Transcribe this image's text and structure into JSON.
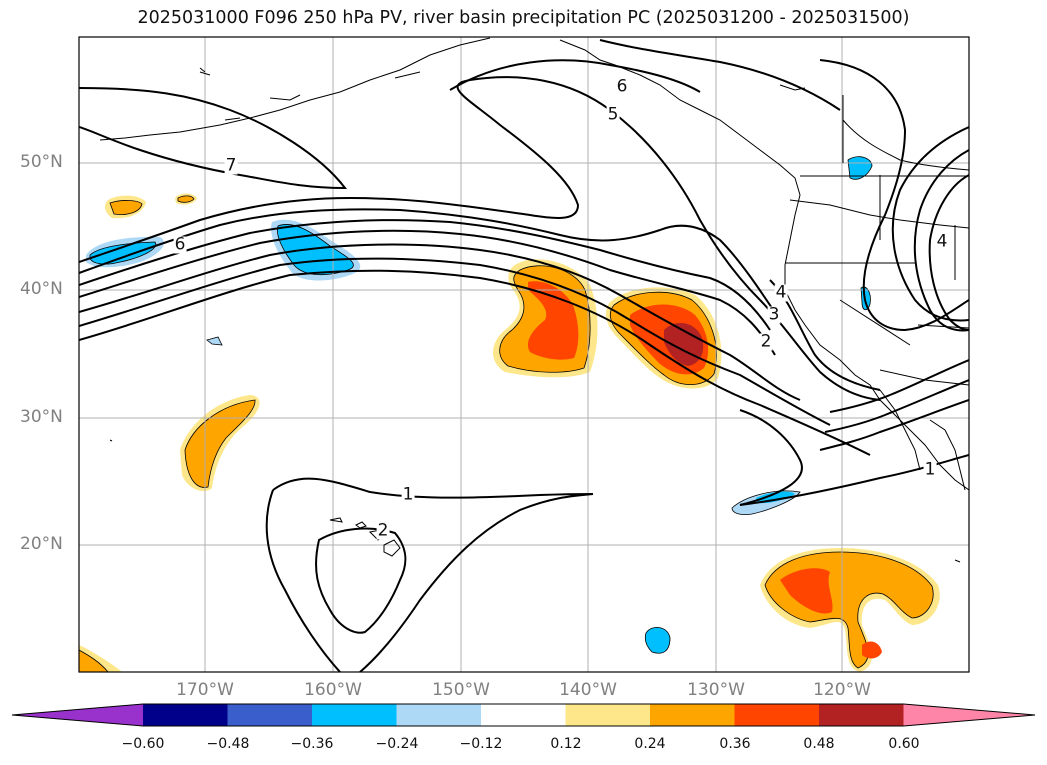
{
  "title": "2025031000 F096 250 hPa PV, river basin precipitation PC (2025031200 - 2025031500)",
  "map": {
    "lat_labels": [
      "50°N",
      "40°N",
      "30°N",
      "20°N"
    ],
    "lon_labels": [
      "170°W",
      "160°W",
      "150°W",
      "140°W",
      "130°W",
      "120°W"
    ],
    "contour_labels": [
      "7",
      "6",
      "6",
      "5",
      "4",
      "3",
      "2",
      "1",
      "1",
      "2",
      "4"
    ]
  },
  "colorbar": {
    "ticks": [
      "−0.60",
      "−0.48",
      "−0.36",
      "−0.24",
      "−0.12",
      "0.12",
      "0.24",
      "0.36",
      "0.48",
      "0.60"
    ],
    "colors": [
      "#9932cc",
      "#00008b",
      "#3a5fcd",
      "#00bfff",
      "#add8f6",
      "#ffffff",
      "#fee78a",
      "#ffa500",
      "#ff4500",
      "#b22222",
      "#ff85a8"
    ]
  }
}
